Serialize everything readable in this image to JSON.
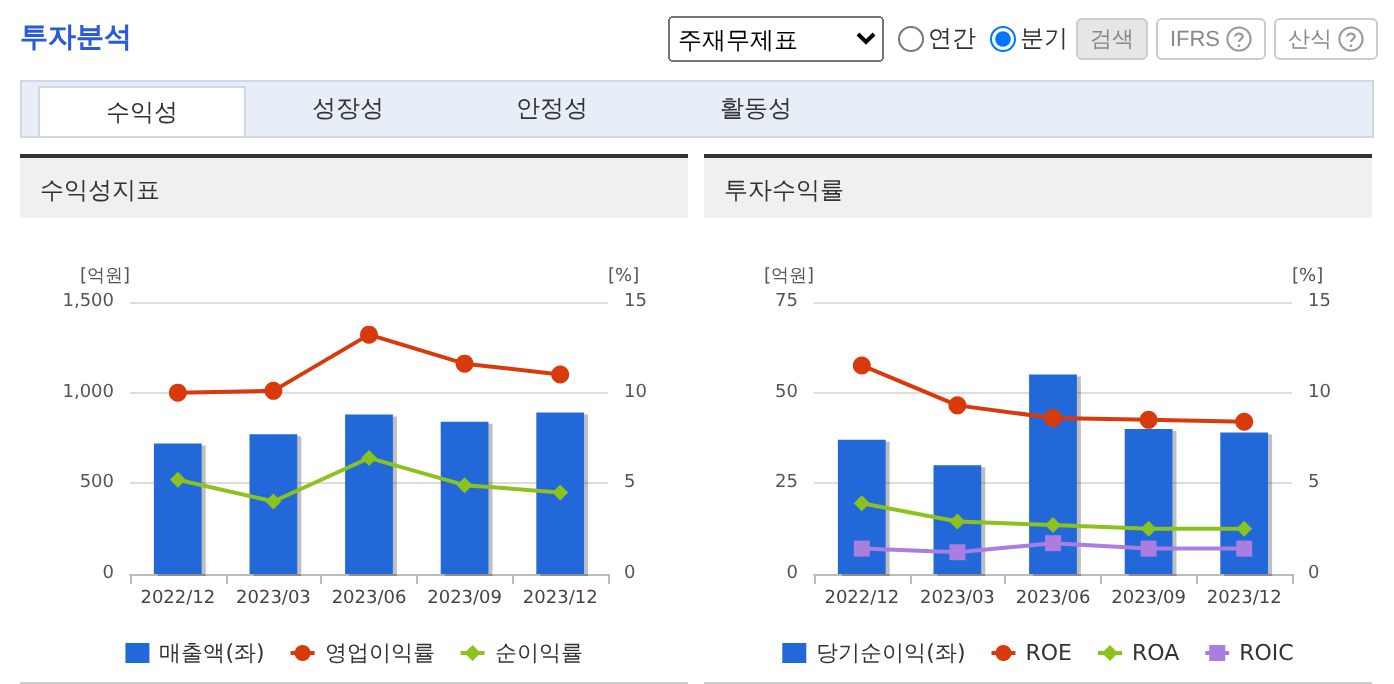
{
  "chart_data": [
    {
      "type": "other",
      "title": "투자분석",
      "annotations": [
        "주재무제표",
        "연간",
        "분기",
        "검색",
        "IFRS",
        "산식",
        "수익성",
        "성장성",
        "안정성",
        "활동성"
      ]
    },
    {
      "type": "bar",
      "title": "수익성지표",
      "categories": [
        "2022/12",
        "2023/03",
        "2023/06",
        "2023/09",
        "2023/12"
      ],
      "ylabel": "[억원]",
      "y2label": "[%]",
      "ylim": [
        0,
        1500
      ],
      "yticks": [
        0,
        500,
        {
          "value": 1000,
          "label": "1,000"
        },
        {
          "value": 1500,
          "label": "1,500"
        }
      ],
      "y2lim": [
        0,
        15
      ],
      "y2ticks": [
        0,
        5,
        10,
        15
      ],
      "grid": "y",
      "legend": "bottom",
      "series": [
        {
          "name": "매출액(좌)",
          "type": "bar",
          "color": "#2268d8",
          "values": [
            720,
            770,
            880,
            840,
            890
          ]
        },
        {
          "name": "영업이익률",
          "type": "line",
          "axis": "y2",
          "marker": "circle",
          "color": "#d83a0c",
          "values": [
            10.0,
            10.1,
            13.2,
            11.6,
            11.0
          ]
        },
        {
          "name": "순이익률",
          "type": "line",
          "axis": "y2",
          "marker": "diamond",
          "color": "#8cc21e",
          "values": [
            5.2,
            4.0,
            6.4,
            4.9,
            4.5
          ]
        }
      ]
    },
    {
      "type": "bar",
      "title": "투자수익률",
      "categories": [
        "2022/12",
        "2023/03",
        "2023/06",
        "2023/09",
        "2023/12"
      ],
      "ylabel": "[억원]",
      "y2label": "[%]",
      "ylim": [
        0,
        75
      ],
      "yticks": [
        0,
        25,
        50,
        75
      ],
      "y2lim": [
        0,
        15
      ],
      "y2ticks": [
        0,
        5,
        10,
        15
      ],
      "grid": "y",
      "legend": "bottom",
      "series": [
        {
          "name": "당기순이익(좌)",
          "type": "bar",
          "color": "#2268d8",
          "values": [
            37,
            30,
            55,
            40,
            39
          ]
        },
        {
          "name": "ROE",
          "type": "line",
          "axis": "y2",
          "marker": "circle",
          "color": "#d83a0c",
          "values": [
            11.5,
            9.3,
            8.6,
            8.5,
            8.4
          ]
        },
        {
          "name": "ROA",
          "type": "line",
          "axis": "y2",
          "marker": "diamond",
          "color": "#8cc21e",
          "values": [
            3.9,
            2.9,
            2.7,
            2.5,
            2.5
          ]
        },
        {
          "name": "ROIC",
          "type": "line",
          "axis": "y2",
          "marker": "square",
          "color": "#a97ee0",
          "values": [
            1.4,
            1.2,
            1.7,
            1.4,
            1.4
          ]
        }
      ]
    }
  ]
}
